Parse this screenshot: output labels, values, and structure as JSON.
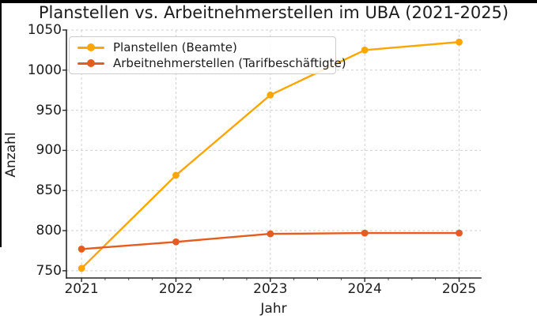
{
  "page": {
    "title": "Planstellen vs. Arbeitnehmerstellen im UBA (2021-2025)"
  },
  "chart_data": {
    "type": "line",
    "title": "Planstellen vs. Arbeitnehmerstellen im UBA (2021-2025)",
    "xlabel": "Jahr",
    "ylabel": "Anzahl",
    "x": [
      2021,
      2022,
      2023,
      2024,
      2025
    ],
    "x_tick_labels": [
      "2021",
      "2022",
      "2023",
      "2024",
      "2025"
    ],
    "y_ticks": [
      750,
      800,
      850,
      900,
      950,
      1000,
      1050
    ],
    "ylim": [
      741,
      1050
    ],
    "xlim": [
      2020.84,
      2025.23
    ],
    "grid": true,
    "grid_style": "dashed",
    "legend_position": "upper left",
    "series": [
      {
        "name": "Planstellen (Beamte)",
        "color": "#ffa500",
        "marker": "circle",
        "values": [
          753,
          869,
          969,
          1025,
          1035
        ]
      },
      {
        "name": "Arbeitnehmerstellen (Tarifbeschäftigte)",
        "color": "#e65c1f",
        "marker": "circle",
        "values": [
          777,
          786,
          796,
          797,
          797
        ]
      }
    ]
  }
}
